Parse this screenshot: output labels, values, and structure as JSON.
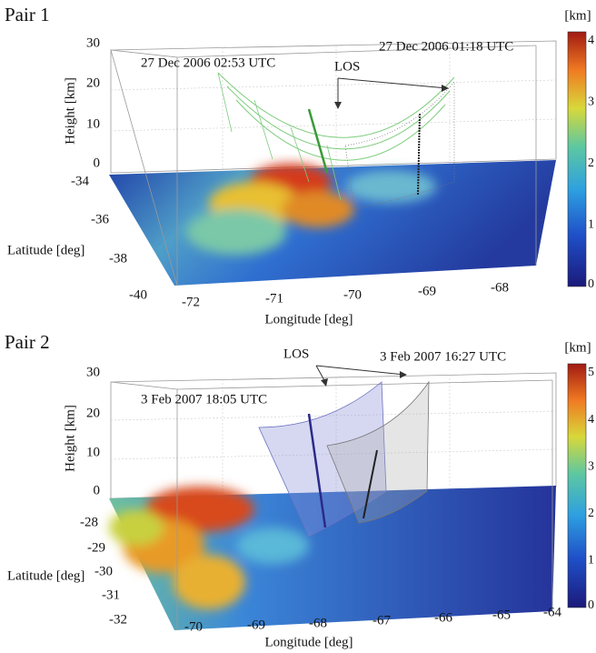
{
  "panels": [
    {
      "label": "Pair 1",
      "annotations": [
        "27 Dec 2006 02:53 UTC",
        "27 Dec 2006 01:18 UTC",
        "LOS"
      ],
      "z_axis": {
        "title": "Height [km]",
        "ticks": [
          "0",
          "10",
          "20",
          "30"
        ]
      },
      "y_axis": {
        "title": "Latitude [deg]",
        "ticks": [
          "-34",
          "-36",
          "-38",
          "-40"
        ]
      },
      "x_axis": {
        "title": "Longitude [deg]",
        "ticks": [
          "-72",
          "-71",
          "-70",
          "-69",
          "-68"
        ]
      },
      "colorbar": {
        "unit": "[km]",
        "ticks": [
          "0",
          "1",
          "2",
          "3",
          "4"
        ]
      }
    },
    {
      "label": "Pair 2",
      "annotations": [
        "3 Feb 2007 18:05 UTC",
        "3 Feb 2007 16:27 UTC",
        "LOS"
      ],
      "z_axis": {
        "title": "Height [km]",
        "ticks": [
          "0",
          "10",
          "20",
          "30"
        ]
      },
      "y_axis": {
        "title": "Latitude [deg]",
        "ticks": [
          "-28",
          "-29",
          "-30",
          "-31",
          "-32"
        ]
      },
      "x_axis": {
        "title": "Longitude [deg]",
        "ticks": [
          "-70",
          "-69",
          "-68",
          "-67",
          "-66",
          "-65",
          "-64"
        ]
      },
      "colorbar": {
        "unit": "[km]",
        "ticks": [
          "0",
          "1",
          "2",
          "3",
          "4",
          "5"
        ]
      }
    }
  ]
}
